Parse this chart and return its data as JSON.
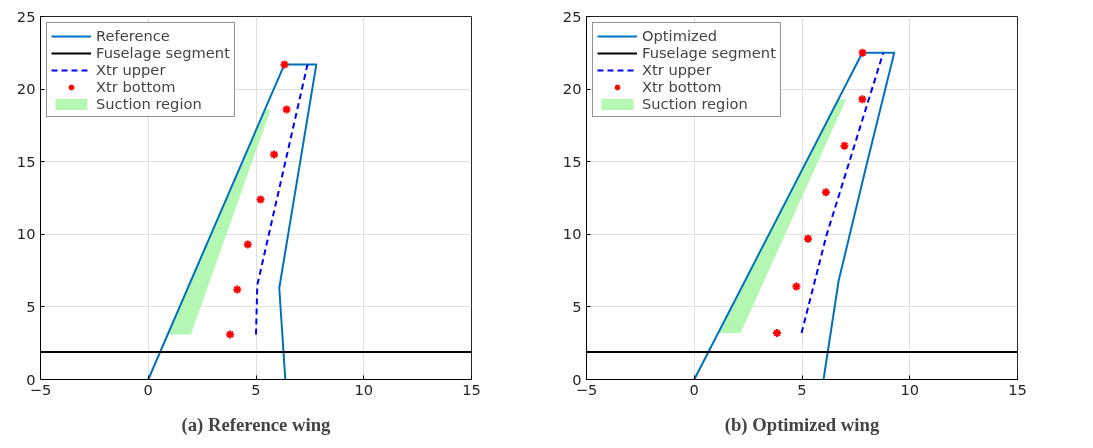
{
  "chart_data": [
    {
      "type": "line",
      "title": "(a) Reference wing",
      "xlim": [
        -5,
        15
      ],
      "ylim": [
        0,
        25
      ],
      "xticks": [
        -5,
        0,
        5,
        10,
        15
      ],
      "yticks": [
        0,
        5,
        10,
        15,
        20,
        25
      ],
      "grid": true,
      "legend": "top left",
      "series": [
        {
          "name": "Reference",
          "color": "#0072bd",
          "line_style": "solid",
          "x": [
            0,
            6.32,
            7.8,
            6.08,
            6.36
          ],
          "values": [
            0,
            21.7,
            21.7,
            6.3,
            0
          ]
        },
        {
          "name": "Fuselage segment",
          "type": "line",
          "color": "#000000",
          "line_style": "solid",
          "x": [
            -5,
            15
          ],
          "values": [
            1.9,
            1.9
          ]
        },
        {
          "name": "Xtr upper",
          "type": "line",
          "color": "#0000ff",
          "line_style": "dashed",
          "x": [
            5.0,
            5.06,
            7.39
          ],
          "values": [
            3.1,
            6.5,
            21.7
          ]
        },
        {
          "name": "Xtr bottom",
          "type": "scatter",
          "color": "#ff0000",
          "marker": "cross",
          "x": [
            6.32,
            6.42,
            5.84,
            5.21,
            4.62,
            4.13,
            3.8
          ],
          "values": [
            21.7,
            18.6,
            15.5,
            12.4,
            9.3,
            6.2,
            3.1
          ]
        },
        {
          "name": "Suction region",
          "type": "area",
          "color": "#b3f7b3",
          "x": [
            0.91,
            1.98,
            5.68,
            5.4
          ],
          "values": [
            3.1,
            3.1,
            18.6,
            18.6
          ]
        }
      ]
    },
    {
      "type": "line",
      "title": "(b) Optimized wing",
      "xlim": [
        -5,
        15
      ],
      "ylim": [
        0,
        25
      ],
      "xticks": [
        -5,
        0,
        5,
        10,
        15
      ],
      "yticks": [
        0,
        5,
        10,
        15,
        20,
        25
      ],
      "grid": true,
      "legend": "top left",
      "series": [
        {
          "name": "Optimized",
          "color": "#0072bd",
          "line_style": "solid",
          "x": [
            0,
            7.8,
            9.28,
            8.0,
            6.7,
            6.0
          ],
          "values": [
            0,
            22.5,
            22.5,
            14.8,
            6.8,
            0
          ]
        },
        {
          "name": "Fuselage segment",
          "type": "line",
          "color": "#000000",
          "line_style": "solid",
          "x": [
            -5,
            15
          ],
          "values": [
            1.9,
            1.9
          ]
        },
        {
          "name": "Xtr upper",
          "type": "line",
          "color": "#0000ff",
          "line_style": "dashed",
          "x": [
            4.98,
            6.13,
            8.77
          ],
          "values": [
            3.2,
            9.9,
            22.5
          ]
        },
        {
          "name": "Xtr bottom",
          "type": "scatter",
          "color": "#ff0000",
          "marker": "cross",
          "x": [
            7.81,
            7.8,
            6.97,
            6.11,
            5.28,
            4.74,
            3.84
          ],
          "values": [
            22.5,
            19.3,
            16.1,
            12.9,
            9.7,
            6.4,
            3.2
          ]
        },
        {
          "name": "Suction region",
          "type": "area",
          "color": "#b3f7b3",
          "x": [
            1.15,
            2.15,
            7.05,
            6.66
          ],
          "values": [
            3.2,
            3.2,
            19.3,
            19.3
          ]
        }
      ]
    }
  ]
}
